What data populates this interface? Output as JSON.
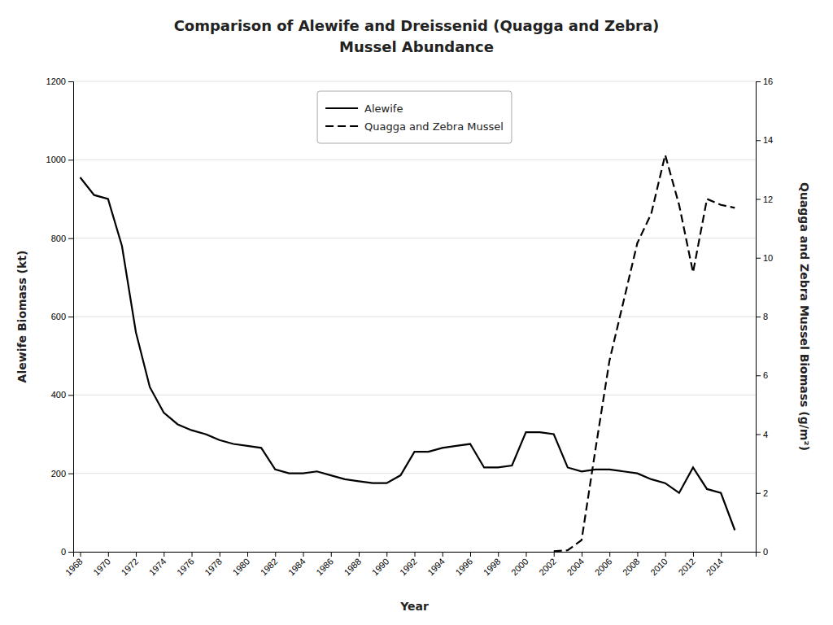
{
  "chart_data": {
    "type": "line",
    "title": [
      "Comparison of Alewife and Dreissenid (Quagga and Zebra)",
      "Mussel Abundance"
    ],
    "xlabel": "Year",
    "ylabel": "Alewife Biomass (kt)",
    "y2label": "Quagga and Zebra Mussel Biomass (g/m²)",
    "series": [
      {
        "name": "Alewife",
        "color": "#000000",
        "line_style": "solid",
        "x": [
          1968,
          1969,
          1970,
          1971,
          1972,
          1973,
          1974,
          1975,
          1976,
          1977,
          1978,
          1979,
          1980,
          1981,
          1982,
          1983,
          1984,
          1985,
          1986,
          1987,
          1988,
          1989,
          1990,
          1991,
          1992,
          1993,
          1994,
          1995,
          1996,
          1997,
          1998,
          1999,
          2000,
          2001,
          2002,
          2003,
          2004,
          2005,
          2006,
          2007,
          2008,
          2009,
          2010,
          2011,
          2012,
          2013,
          2014,
          2015
        ],
        "values": [
          955,
          910,
          900,
          780,
          560,
          420,
          355,
          325,
          310,
          300,
          285,
          275,
          270,
          265,
          210,
          200,
          200,
          205,
          195,
          185,
          180,
          175,
          175,
          195,
          255,
          255,
          265,
          270,
          275,
          215,
          215,
          220,
          305,
          305,
          300,
          215,
          205,
          210,
          210,
          205,
          200,
          185,
          175,
          150,
          215,
          160,
          150,
          55
        ]
      },
      {
        "name": "Quagga and Zebra Mussel",
        "color": "#000000",
        "line_style": "dashed",
        "axis": "y2",
        "x": [
          2002,
          2003,
          2004,
          2005,
          2006,
          2007,
          2008,
          2009,
          2010,
          2011,
          2012,
          2013,
          2014,
          2015
        ],
        "values": [
          0.02,
          0.05,
          0.4,
          3.5,
          6.5,
          8.5,
          10.5,
          11.5,
          13.5,
          11.8,
          9.5,
          12.0,
          11.8,
          11.7
        ]
      }
    ],
    "xlim": [
      1967.5,
      2016.5
    ],
    "xticks": [
      1968,
      1970,
      1972,
      1974,
      1976,
      1978,
      1980,
      1982,
      1984,
      1986,
      1988,
      1990,
      1992,
      1994,
      1996,
      1998,
      2000,
      2002,
      2004,
      2006,
      2008,
      2010,
      2012,
      2014
    ],
    "ylim": [
      0,
      1200
    ],
    "yticks": [
      0,
      200,
      400,
      600,
      800,
      1000,
      1200
    ],
    "y2lim": [
      0,
      16
    ],
    "y2ticks": [
      0,
      2,
      4,
      6,
      8,
      10,
      12,
      14,
      16
    ],
    "grid": true,
    "legend": "upper center"
  }
}
